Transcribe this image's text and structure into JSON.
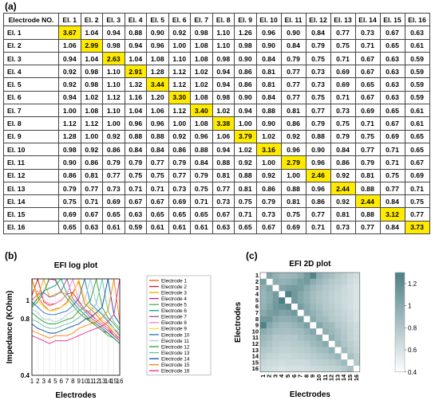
{
  "panel_labels": {
    "a": "(a)",
    "b": "(b)",
    "c": "(c)"
  },
  "table": {
    "corner": "Electrode NO.",
    "columns": [
      "El. 1",
      "El. 2",
      "El. 3",
      "El. 4",
      "El. 5",
      "El. 6",
      "El. 7",
      "El. 8",
      "El. 9",
      "El. 10",
      "El. 11",
      "El. 12",
      "El. 13",
      "El. 14",
      "El. 15",
      "El. 16"
    ],
    "rows": [
      {
        "label": "El. 1",
        "values": [
          "3.67",
          "1.04",
          "0.94",
          "0.88",
          "0.90",
          "0.92",
          "0.98",
          "1.10",
          "1.26",
          "0.96",
          "0.90",
          "0.84",
          "0.77",
          "0.73",
          "0.67",
          "0.63"
        ]
      },
      {
        "label": "El. 2",
        "values": [
          "1.06",
          "2.99",
          "0.98",
          "0.94",
          "0.96",
          "1.00",
          "1.08",
          "1.10",
          "0.98",
          "0.90",
          "0.84",
          "0.79",
          "0.75",
          "0.71",
          "0.65",
          "0.61"
        ]
      },
      {
        "label": "El. 3",
        "values": [
          "0.94",
          "1.04",
          "2.63",
          "1.04",
          "1.08",
          "1.10",
          "1.08",
          "0.98",
          "0.90",
          "0.84",
          "0.79",
          "0.75",
          "0.71",
          "0.67",
          "0.63",
          "0.59"
        ]
      },
      {
        "label": "El. 4",
        "values": [
          "0.92",
          "0.98",
          "1.10",
          "2.91",
          "1.28",
          "1.12",
          "1.02",
          "0.94",
          "0.86",
          "0.81",
          "0.77",
          "0.73",
          "0.69",
          "0.67",
          "0.63",
          "0.59"
        ]
      },
      {
        "label": "El. 5",
        "values": [
          "0.92",
          "0.98",
          "1.10",
          "1.32",
          "3.44",
          "1.12",
          "1.02",
          "0.94",
          "0.86",
          "0.81",
          "0.77",
          "0.73",
          "0.69",
          "0.65",
          "0.63",
          "0.59"
        ]
      },
      {
        "label": "El. 6",
        "values": [
          "0.94",
          "1.02",
          "1.12",
          "1.16",
          "1.20",
          "3.30",
          "1.08",
          "0.98",
          "0.90",
          "0.84",
          "0.77",
          "0.75",
          "0.71",
          "0.67",
          "0.63",
          "0.59"
        ]
      },
      {
        "label": "El. 7",
        "values": [
          "1.00",
          "1.08",
          "1.10",
          "1.04",
          "1.06",
          "1.12",
          "3.40",
          "1.02",
          "0.94",
          "0.88",
          "0.81",
          "0.77",
          "0.73",
          "0.69",
          "0.65",
          "0.61"
        ]
      },
      {
        "label": "El. 8",
        "values": [
          "1.12",
          "1.12",
          "1.00",
          "0.96",
          "0.96",
          "1.00",
          "1.08",
          "3.38",
          "1.00",
          "0.90",
          "0.86",
          "0.79",
          "0.75",
          "0.71",
          "0.67",
          "0.61"
        ]
      },
      {
        "label": "El. 9",
        "values": [
          "1.28",
          "1.00",
          "0.92",
          "0.88",
          "0.88",
          "0.92",
          "0.96",
          "1.06",
          "3.79",
          "1.02",
          "0.92",
          "0.88",
          "0.79",
          "0.75",
          "0.69",
          "0.65"
        ]
      },
      {
        "label": "El. 10",
        "values": [
          "0.98",
          "0.92",
          "0.86",
          "0.84",
          "0.84",
          "0.86",
          "0.88",
          "0.94",
          "1.02",
          "3.16",
          "0.96",
          "0.90",
          "0.84",
          "0.77",
          "0.71",
          "0.65"
        ]
      },
      {
        "label": "El. 11",
        "values": [
          "0.90",
          "0.86",
          "0.79",
          "0.79",
          "0.77",
          "0.79",
          "0.84",
          "0.88",
          "0.92",
          "1.00",
          "2.79",
          "0.96",
          "0.86",
          "0.79",
          "0.71",
          "0.67"
        ]
      },
      {
        "label": "El. 12",
        "values": [
          "0.86",
          "0.81",
          "0.77",
          "0.75",
          "0.75",
          "0.77",
          "0.79",
          "0.81",
          "0.88",
          "0.92",
          "1.00",
          "2.46",
          "0.92",
          "0.81",
          "0.75",
          "0.69"
        ]
      },
      {
        "label": "El. 13",
        "values": [
          "0.79",
          "0.77",
          "0.73",
          "0.71",
          "0.71",
          "0.73",
          "0.75",
          "0.77",
          "0.81",
          "0.86",
          "0.88",
          "0.96",
          "2.44",
          "0.88",
          "0.77",
          "0.71"
        ]
      },
      {
        "label": "El. 14",
        "values": [
          "0.75",
          "0.71",
          "0.69",
          "0.67",
          "0.67",
          "0.69",
          "0.71",
          "0.73",
          "0.75",
          "0.79",
          "0.81",
          "0.86",
          "0.92",
          "2.44",
          "0.84",
          "0.75"
        ]
      },
      {
        "label": "El. 15",
        "values": [
          "0.69",
          "0.67",
          "0.65",
          "0.63",
          "0.65",
          "0.65",
          "0.65",
          "0.67",
          "0.71",
          "0.73",
          "0.75",
          "0.77",
          "0.81",
          "0.88",
          "3.12",
          "0.77"
        ]
      },
      {
        "label": "El. 16",
        "values": [
          "0.65",
          "0.63",
          "0.61",
          "0.59",
          "0.61",
          "0.61",
          "0.61",
          "0.63",
          "0.65",
          "0.67",
          "0.69",
          "0.71",
          "0.73",
          "0.77",
          "0.84",
          "3.73"
        ]
      }
    ]
  },
  "colors": {
    "diagonal_highlight": "#ffea00",
    "series": [
      "#e66101",
      "#d7191c",
      "#e6ab02",
      "#c51b8a",
      "#4daf4a",
      "#00a087",
      "#984ea3",
      "#f781bf",
      "#ffd92f",
      "#1f78b4",
      "#a6cee3",
      "#33a02c",
      "#66c2a5",
      "#08519c",
      "#ff7f00",
      "#e7298a"
    ],
    "heatmap_low": "#ffffff",
    "heatmap_high": "#4d7f84"
  },
  "chart_data": [
    {
      "type": "line",
      "title": "EFI log plot",
      "xlabel": "Electrodes",
      "ylabel": "Impedance (KOhm)",
      "x": [
        1,
        2,
        3,
        4,
        5,
        6,
        7,
        8,
        9,
        10,
        11,
        12,
        13,
        14,
        15,
        16
      ],
      "xticks": [
        "1",
        "2",
        "3",
        "4",
        "5",
        "6",
        "7",
        "8",
        "9",
        "10",
        "11",
        "12",
        "13",
        "14",
        "15",
        "16"
      ],
      "yscale": "log",
      "ylim": [
        0.4,
        1.3
      ],
      "yticks": [
        0.4,
        0.8,
        1
      ],
      "ytick_labels": [
        "0.4",
        "0.8",
        "1"
      ],
      "grid": true,
      "legend_position": "right",
      "series": [
        {
          "name": "Electrode 1",
          "values": [
            1.3,
            1.04,
            0.94,
            0.88,
            0.9,
            0.92,
            0.98,
            1.1,
            1.26,
            0.96,
            0.9,
            0.84,
            0.77,
            0.73,
            0.67,
            0.63
          ]
        },
        {
          "name": "Electrode 2",
          "values": [
            1.06,
            1.3,
            0.98,
            0.94,
            0.96,
            1.0,
            1.08,
            1.1,
            0.98,
            0.9,
            0.84,
            0.79,
            0.75,
            0.71,
            0.65,
            0.61
          ]
        },
        {
          "name": "Electrode 3",
          "values": [
            0.94,
            1.04,
            1.3,
            1.04,
            1.08,
            1.1,
            1.08,
            0.98,
            0.9,
            0.84,
            0.79,
            0.75,
            0.71,
            0.67,
            0.63,
            0.59
          ]
        },
        {
          "name": "Electrode 4",
          "values": [
            0.92,
            0.98,
            1.1,
            1.3,
            1.28,
            1.12,
            1.02,
            0.94,
            0.86,
            0.81,
            0.77,
            0.73,
            0.69,
            0.67,
            0.63,
            0.59
          ]
        },
        {
          "name": "Electrode 5",
          "values": [
            0.92,
            0.98,
            1.1,
            1.32,
            1.3,
            1.12,
            1.02,
            0.94,
            0.86,
            0.81,
            0.77,
            0.73,
            0.69,
            0.65,
            0.63,
            0.59
          ]
        },
        {
          "name": "Electrode 6",
          "values": [
            0.94,
            1.02,
            1.12,
            1.16,
            1.2,
            1.3,
            1.08,
            0.98,
            0.9,
            0.84,
            0.77,
            0.75,
            0.71,
            0.67,
            0.63,
            0.59
          ]
        },
        {
          "name": "Electrode 7",
          "values": [
            1.0,
            1.08,
            1.1,
            1.04,
            1.06,
            1.12,
            1.3,
            1.02,
            0.94,
            0.88,
            0.81,
            0.77,
            0.73,
            0.69,
            0.65,
            0.61
          ]
        },
        {
          "name": "Electrode 8",
          "values": [
            1.12,
            1.12,
            1.0,
            0.96,
            0.96,
            1.0,
            1.08,
            1.3,
            1.0,
            0.9,
            0.86,
            0.79,
            0.75,
            0.71,
            0.67,
            0.61
          ]
        },
        {
          "name": "Electrode 9",
          "values": [
            1.28,
            1.0,
            0.92,
            0.88,
            0.88,
            0.92,
            0.96,
            1.06,
            1.3,
            1.02,
            0.92,
            0.88,
            0.79,
            0.75,
            0.69,
            0.65
          ]
        },
        {
          "name": "Electrode 10",
          "values": [
            0.98,
            0.92,
            0.86,
            0.84,
            0.84,
            0.86,
            0.88,
            0.94,
            1.02,
            1.3,
            0.96,
            0.9,
            0.84,
            0.77,
            0.71,
            0.65
          ]
        },
        {
          "name": "Electrode 11",
          "values": [
            0.9,
            0.86,
            0.79,
            0.79,
            0.77,
            0.79,
            0.84,
            0.88,
            0.92,
            1.0,
            1.3,
            0.96,
            0.86,
            0.79,
            0.71,
            0.67
          ]
        },
        {
          "name": "Electrode 12",
          "values": [
            0.86,
            0.81,
            0.77,
            0.75,
            0.75,
            0.77,
            0.79,
            0.81,
            0.88,
            0.92,
            1.0,
            1.3,
            0.92,
            0.81,
            0.75,
            0.69
          ]
        },
        {
          "name": "Electrode 13",
          "values": [
            0.79,
            0.77,
            0.73,
            0.71,
            0.71,
            0.73,
            0.75,
            0.77,
            0.81,
            0.86,
            0.88,
            0.96,
            1.3,
            0.88,
            0.77,
            0.71
          ]
        },
        {
          "name": "Electrode 14",
          "values": [
            0.75,
            0.71,
            0.69,
            0.67,
            0.67,
            0.69,
            0.71,
            0.73,
            0.75,
            0.79,
            0.81,
            0.86,
            0.92,
            1.3,
            0.84,
            0.75
          ]
        },
        {
          "name": "Electrode 15",
          "values": [
            0.69,
            0.67,
            0.65,
            0.63,
            0.65,
            0.65,
            0.65,
            0.67,
            0.71,
            0.73,
            0.75,
            0.77,
            0.81,
            0.88,
            1.3,
            0.77
          ]
        },
        {
          "name": "Electrode 16",
          "values": [
            0.65,
            0.63,
            0.61,
            0.59,
            0.61,
            0.61,
            0.61,
            0.63,
            0.65,
            0.67,
            0.69,
            0.71,
            0.73,
            0.77,
            0.84,
            1.3
          ]
        }
      ]
    },
    {
      "type": "heatmap",
      "title": "EFI 2D plot",
      "xlabel": "Electrodes",
      "ylabel": "Electrodes",
      "xticks": [
        "1",
        "2",
        "3",
        "4",
        "5",
        "6",
        "7",
        "8",
        "9",
        "10",
        "11",
        "12",
        "13",
        "14",
        "15",
        "16"
      ],
      "yticks": [
        "1",
        "2",
        "3",
        "4",
        "5",
        "6",
        "7",
        "8",
        "9",
        "10",
        "11",
        "12",
        "13",
        "14",
        "15",
        "16"
      ],
      "color_range": [
        0.4,
        1.3
      ],
      "colorbar_ticks": [
        0.4,
        0.6,
        0.8,
        1,
        1.2
      ],
      "colorbar_tick_labels": [
        "0.4",
        "0.6",
        "0.8",
        "1",
        "1.2"
      ],
      "diagonal": "white",
      "source": "table"
    }
  ]
}
